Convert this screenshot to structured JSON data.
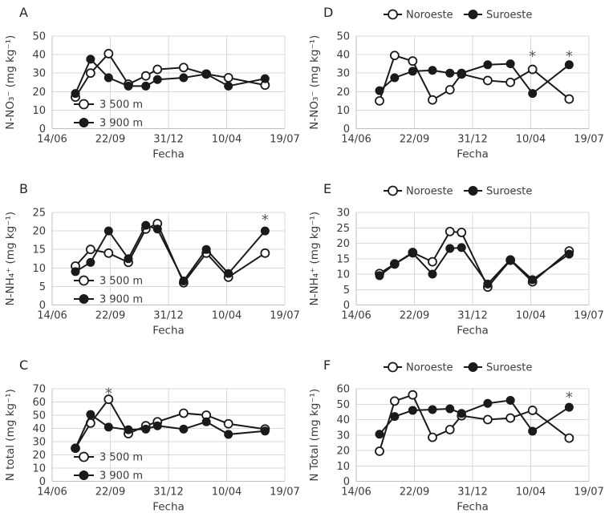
{
  "figure": {
    "background": "#ffffff",
    "x_range": [
      0,
      400
    ],
    "x_ticks": {
      "days": [
        0,
        100,
        200,
        300,
        400
      ],
      "labels": [
        "14/06",
        "22/09",
        "31/12",
        "10/04",
        "19/07"
      ]
    },
    "x_days": [
      40,
      66,
      97,
      131,
      161,
      181,
      226,
      265,
      303,
      366
    ],
    "xlabel": "Fecha",
    "annotation_symbol": "*",
    "colors": {
      "line": "#1a1a1a",
      "grid": "#d9d9d9",
      "axis": "#bfbfbf",
      "text": "#3b3b3b",
      "panel_letter": "#262626",
      "annotation": "#595959",
      "open_marker_fill": "#ffffff"
    }
  },
  "chart_data": [
    {
      "type": "line",
      "panel": "A",
      "grid_position": {
        "row": 0,
        "col": 0
      },
      "ylabel": "N-NO₃⁻ (mg kg⁻¹)",
      "xlabel": "Fecha",
      "ylim": [
        0,
        50
      ],
      "ytick_step": 10,
      "legend_position": "inside-bottom-left",
      "series": [
        {
          "name": "3 500 m",
          "marker": "open",
          "values": [
            17,
            30,
            40.5,
            24,
            28.5,
            32,
            33,
            29.5,
            27.5,
            23.5
          ]
        },
        {
          "name": "3 900 m",
          "marker": "filled",
          "values": [
            19,
            37.5,
            27.5,
            23,
            23,
            26.5,
            27.5,
            29.5,
            23,
            27
          ]
        }
      ],
      "annotations": []
    },
    {
      "type": "line",
      "panel": "D",
      "grid_position": {
        "row": 0,
        "col": 1
      },
      "ylabel": "N-NO₃⁻ (mg kg⁻¹)",
      "xlabel": "Fecha",
      "ylim": [
        0,
        50
      ],
      "ytick_step": 10,
      "legend_position": "top",
      "series": [
        {
          "name": "Noroeste",
          "marker": "open",
          "values": [
            15,
            39.5,
            36.5,
            15.5,
            21,
            29.5,
            26,
            25,
            32,
            16
          ]
        },
        {
          "name": "Suroeste",
          "marker": "filled",
          "values": [
            20.5,
            27.5,
            31,
            31.5,
            30,
            30,
            34.5,
            35,
            19,
            34.5
          ]
        }
      ],
      "annotations": [
        {
          "day": 303,
          "value": 40
        },
        {
          "day": 366,
          "value": 40
        }
      ]
    },
    {
      "type": "line",
      "panel": "B",
      "grid_position": {
        "row": 1,
        "col": 0
      },
      "ylabel": "N-NH₄⁺ (mg kg⁻¹)",
      "xlabel": "Fecha",
      "ylim": [
        0,
        25
      ],
      "ytick_step": 5,
      "legend_position": "inside-bottom-left",
      "series": [
        {
          "name": "3 500 m",
          "marker": "open",
          "values": [
            10.5,
            15,
            14,
            11.5,
            20.5,
            22,
            6,
            14,
            7.5,
            14
          ]
        },
        {
          "name": "3 900 m",
          "marker": "filled",
          "values": [
            9,
            11.5,
            20,
            12.5,
            21.5,
            20.5,
            6.5,
            15,
            8.5,
            20
          ]
        }
      ],
      "annotations": [
        {
          "day": 366,
          "value": 23.5
        }
      ]
    },
    {
      "type": "line",
      "panel": "E",
      "grid_position": {
        "row": 1,
        "col": 1
      },
      "ylabel": "N-NH₄⁺ (mg kg⁻¹)",
      "xlabel": "Fecha",
      "ylim": [
        0,
        30
      ],
      "ytick_step": 5,
      "legend_position": "top",
      "series": [
        {
          "name": "Noroeste",
          "marker": "open",
          "values": [
            10.2,
            13.3,
            17,
            14,
            23.8,
            23.5,
            5.8,
            14.5,
            7.5,
            17.5
          ]
        },
        {
          "name": "Suroeste",
          "marker": "filled",
          "values": [
            9.5,
            13.2,
            16.8,
            10,
            18.3,
            18.6,
            6.8,
            14.7,
            8.2,
            16.5
          ]
        }
      ],
      "annotations": []
    },
    {
      "type": "line",
      "panel": "C",
      "grid_position": {
        "row": 2,
        "col": 0
      },
      "ylabel": "N total (mg kg⁻¹)",
      "xlabel": "Fecha",
      "ylim": [
        0,
        70
      ],
      "ytick_step": 10,
      "legend_position": "inside-bottom-left",
      "series": [
        {
          "name": "3 500 m",
          "marker": "open",
          "values": [
            25,
            44,
            62,
            36,
            42,
            45,
            51.5,
            50,
            43.5,
            39.5
          ]
        },
        {
          "name": "3 900 m",
          "marker": "filled",
          "values": [
            25,
            50.5,
            41,
            39,
            39.5,
            42,
            39.5,
            45,
            35.5,
            38
          ]
        }
      ],
      "annotations": [
        {
          "day": 97,
          "value": 68
        }
      ]
    },
    {
      "type": "line",
      "panel": "F",
      "grid_position": {
        "row": 2,
        "col": 1
      },
      "ylabel": "N Total (mg kg⁻¹)",
      "xlabel": "Fecha",
      "ylim": [
        0,
        60
      ],
      "ytick_step": 10,
      "legend_position": "top",
      "series": [
        {
          "name": "Noroeste",
          "marker": "open",
          "values": [
            19.5,
            52,
            56,
            28.5,
            33.5,
            42.5,
            40,
            41,
            46,
            28
          ]
        },
        {
          "name": "Suroeste",
          "marker": "filled",
          "values": [
            30.5,
            42,
            46,
            46.5,
            47,
            44,
            50.5,
            52.5,
            32.5,
            48
          ]
        }
      ],
      "annotations": [
        {
          "day": 366,
          "value": 55.5
        }
      ]
    }
  ]
}
